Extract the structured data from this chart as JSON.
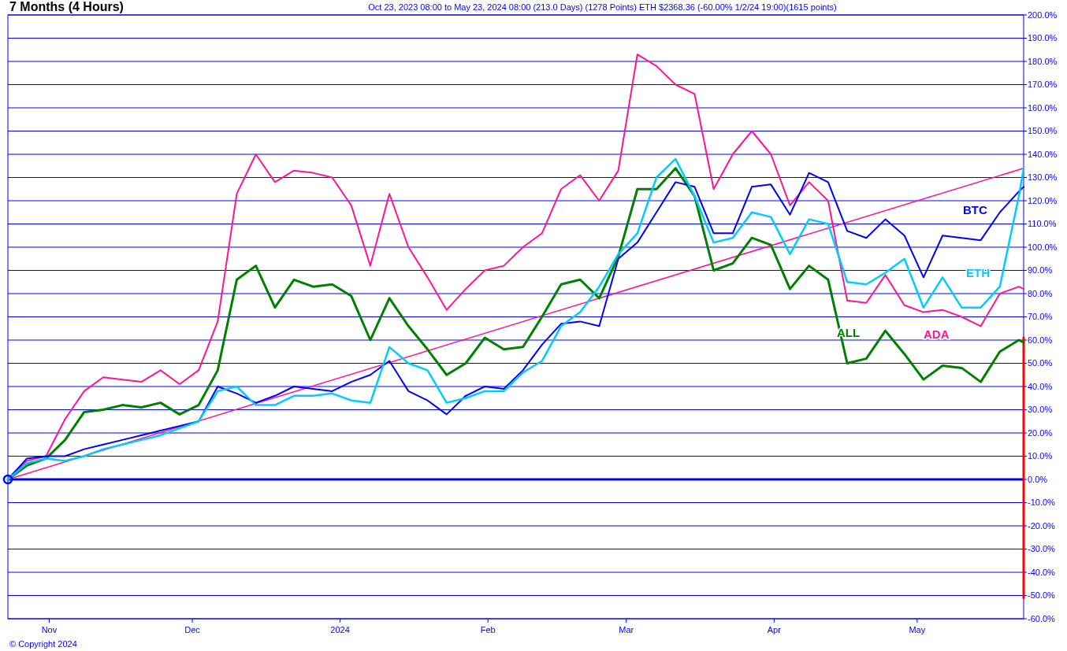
{
  "chart_data": {
    "type": "line",
    "title": "7 Months (4 Hours)",
    "subtitle": "Oct 23, 2023 08:00 to May 23, 2024 08:00 (213.0 Days) (1278 Points) ETH $2368.36 (-60.00% 1/2/24 19:00)(1615 points)",
    "annotations": [
      "© Copyright 2024"
    ],
    "x": [
      "2023-10-23T08:00",
      "2023-10-27T08:00",
      "2023-10-31T08:00",
      "2023-11-04T08:00",
      "2023-11-08T08:00",
      "2023-11-12T08:00",
      "2023-11-16T08:00",
      "2023-11-20T08:00",
      "2023-11-24T08:00",
      "2023-11-28T08:00",
      "2023-12-02T08:00",
      "2023-12-06T08:00",
      "2023-12-10T08:00",
      "2023-12-14T08:00",
      "2023-12-18T08:00",
      "2023-12-22T08:00",
      "2023-12-26T08:00",
      "2023-12-30T08:00",
      "2024-01-03T08:00",
      "2024-01-07T08:00",
      "2024-01-11T08:00",
      "2024-01-15T08:00",
      "2024-01-19T08:00",
      "2024-01-23T08:00",
      "2024-01-27T08:00",
      "2024-01-31T08:00",
      "2024-02-04T08:00",
      "2024-02-08T08:00",
      "2024-02-12T08:00",
      "2024-02-16T08:00",
      "2024-02-20T08:00",
      "2024-02-24T08:00",
      "2024-02-28T08:00",
      "2024-03-03T08:00",
      "2024-03-07T08:00",
      "2024-03-11T08:00",
      "2024-03-15T08:00",
      "2024-03-19T08:00",
      "2024-03-23T08:00",
      "2024-03-27T08:00",
      "2024-03-31T08:00",
      "2024-04-04T08:00",
      "2024-04-08T08:00",
      "2024-04-12T08:00",
      "2024-04-16T08:00",
      "2024-04-20T08:00",
      "2024-04-24T08:00",
      "2024-04-28T08:00",
      "2024-05-02T08:00",
      "2024-05-06T08:00",
      "2024-05-10T08:00",
      "2024-05-14T08:00",
      "2024-05-18T08:00",
      "2024-05-22T08:00",
      "2024-05-23T08:00"
    ],
    "series": [
      {
        "name": "ADA",
        "color": "#ff1493",
        "values": [
          0,
          8,
          10,
          26,
          38,
          44,
          43,
          42,
          47,
          41,
          47,
          68,
          123,
          140,
          128,
          133,
          132,
          130,
          118,
          92,
          123,
          100,
          87,
          73,
          82,
          90,
          92,
          100,
          106,
          125,
          131,
          120,
          133,
          183,
          178,
          170,
          166,
          125,
          140,
          150,
          140,
          118,
          128,
          120,
          77,
          76,
          88,
          75,
          72,
          73,
          70,
          66,
          80,
          83,
          82
        ]
      },
      {
        "name": "ALL",
        "color": "#008000",
        "values": [
          0,
          6,
          9,
          17,
          29,
          30,
          32,
          31,
          33,
          28,
          32,
          47,
          86,
          92,
          74,
          86,
          83,
          84,
          79,
          60,
          78,
          66,
          56,
          45,
          50,
          61,
          56,
          57,
          70,
          84,
          86,
          78,
          96,
          125,
          125,
          134,
          122,
          90,
          93,
          104,
          101,
          82,
          92,
          86,
          50,
          52,
          64,
          54,
          43,
          49,
          48,
          42,
          55,
          60,
          59
        ]
      },
      {
        "name": "BTC",
        "color": "#0000ff",
        "values": [
          0,
          9,
          10,
          10,
          13,
          15,
          17,
          19,
          21,
          23,
          25,
          40,
          37,
          33,
          36,
          40,
          39,
          38,
          42,
          45,
          51,
          38,
          34,
          28,
          36,
          40,
          39,
          47,
          58,
          67,
          68,
          66,
          95,
          102,
          115,
          128,
          126,
          106,
          106,
          126,
          127,
          114,
          132,
          128,
          107,
          104,
          112,
          105,
          87,
          105,
          104,
          103,
          115,
          124,
          126
        ]
      },
      {
        "name": "ETH",
        "color": "#00ccff",
        "values": [
          0,
          7,
          9,
          8,
          10,
          13,
          15,
          17,
          19,
          22,
          25,
          38,
          40,
          32,
          32,
          36,
          36,
          37,
          34,
          33,
          57,
          50,
          47,
          33,
          35,
          38,
          38,
          46,
          51,
          66,
          72,
          83,
          97,
          106,
          130,
          138,
          122,
          102,
          104,
          115,
          113,
          97,
          112,
          110,
          85,
          84,
          89,
          95,
          74,
          87,
          74,
          74,
          83,
          122,
          134
        ]
      },
      {
        "type": "line",
        "color": "#ff1493",
        "x": [
          "2023-10-23T08:00",
          "2024-05-23T08:00"
        ],
        "values": [
          0,
          134
        ]
      },
      {
        "type": "line",
        "color": "#ff0000",
        "x": [
          "2024-05-23T08:00",
          "2024-05-23T08:00"
        ],
        "values": [
          61,
          -51
        ]
      }
    ],
    "xlim": [
      "2023-10-23T08:00",
      "2024-05-23T08:00"
    ],
    "xticks": [
      {
        "value": "2023-11-01",
        "label": "Nov"
      },
      {
        "value": "2023-12-01",
        "label": "Dec"
      },
      {
        "value": "2024-01-01",
        "label": "2024"
      },
      {
        "value": "2024-02-01",
        "label": "Feb"
      },
      {
        "value": "2024-03-01",
        "label": "Mar"
      },
      {
        "value": "2024-04-01",
        "label": "Apr"
      },
      {
        "value": "2024-05-01",
        "label": "May"
      }
    ],
    "ylim": [
      -60,
      200
    ],
    "yticks": [
      {
        "value": -60,
        "label": "-60.0%"
      },
      {
        "value": -50,
        "label": "-50.0%"
      },
      {
        "value": -40,
        "label": "-40.0%"
      },
      {
        "value": -30,
        "label": "-30.0%"
      },
      {
        "value": -20,
        "label": "-20.0%"
      },
      {
        "value": -10,
        "label": "-10.0%"
      },
      {
        "value": 0,
        "label": "0.0%"
      },
      {
        "value": 10,
        "label": "10.0%"
      },
      {
        "value": 20,
        "label": "20.0%"
      },
      {
        "value": 30,
        "label": "30.0%"
      },
      {
        "value": 40,
        "label": "40.0%"
      },
      {
        "value": 50,
        "label": "50.0%"
      },
      {
        "value": 60,
        "label": "60.0%"
      },
      {
        "value": 70,
        "label": "70.0%"
      },
      {
        "value": 80,
        "label": "80.0%"
      },
      {
        "value": 90,
        "label": "90.0%"
      },
      {
        "value": 100,
        "label": "100.0%"
      },
      {
        "value": 110,
        "label": "110.0%"
      },
      {
        "value": 120,
        "label": "120.0%"
      },
      {
        "value": 130,
        "label": "130.0%"
      },
      {
        "value": 140,
        "label": "140.0%"
      },
      {
        "value": 150,
        "label": "150.0%"
      },
      {
        "value": 160,
        "label": "160.0%"
      },
      {
        "value": 170,
        "label": "170.0%"
      },
      {
        "value": 180,
        "label": "180.0%"
      },
      {
        "value": 190,
        "label": "190.0%"
      },
      {
        "value": 200,
        "label": "200.0%"
      }
    ],
    "ref_lines": [
      {
        "axis": "y",
        "value": 0,
        "color": "#0000ff"
      }
    ],
    "grid": "y",
    "marker": "none",
    "line_style": "solid"
  }
}
